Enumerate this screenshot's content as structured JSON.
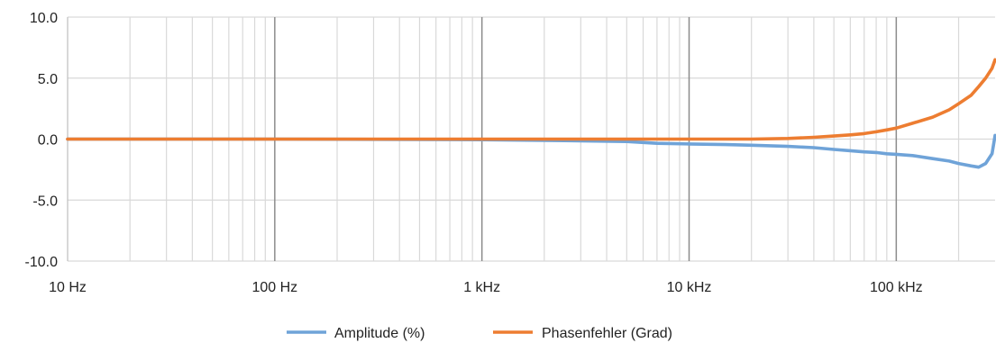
{
  "chart_data": {
    "type": "line",
    "x_scale": "log",
    "xlim": [
      10,
      300000
    ],
    "ylim": [
      -10,
      10
    ],
    "y_ticks": [
      10,
      5,
      0,
      -5,
      -10
    ],
    "y_tick_labels": [
      "10.0",
      "5.0",
      "0.0",
      "-5.0",
      "-10.0"
    ],
    "x_ticks": [
      10,
      100,
      1000,
      10000,
      100000
    ],
    "x_tick_labels": [
      "10 Hz",
      "100 Hz",
      "1 kHz",
      "10 kHz",
      "100 kHz"
    ],
    "grid": true,
    "legend_position": "bottom",
    "series": [
      {
        "name": "Amplitude (%)",
        "color": "#6fa3d8",
        "x": [
          10,
          100,
          1000,
          2000,
          5000,
          7000,
          10000,
          15000,
          20000,
          30000,
          40000,
          50000,
          60000,
          70000,
          80000,
          90000,
          100000,
          120000,
          150000,
          180000,
          200000,
          230000,
          250000,
          270000,
          290000,
          300000
        ],
        "y": [
          0.0,
          0.0,
          -0.05,
          -0.1,
          -0.2,
          -0.35,
          -0.4,
          -0.45,
          -0.5,
          -0.6,
          -0.7,
          -0.85,
          -0.95,
          -1.05,
          -1.1,
          -1.2,
          -1.25,
          -1.35,
          -1.6,
          -1.8,
          -2.0,
          -2.2,
          -2.3,
          -2.0,
          -1.2,
          0.3
        ]
      },
      {
        "name": "Phasenfehler (Grad)",
        "color": "#ed7d31",
        "x": [
          10,
          100,
          1000,
          5000,
          10000,
          20000,
          30000,
          40000,
          50000,
          60000,
          70000,
          80000,
          90000,
          100000,
          120000,
          150000,
          180000,
          200000,
          230000,
          250000,
          270000,
          290000,
          300000
        ],
        "y": [
          0.0,
          0.0,
          0.0,
          0.0,
          0.0,
          0.0,
          0.05,
          0.15,
          0.25,
          0.35,
          0.45,
          0.6,
          0.75,
          0.9,
          1.3,
          1.8,
          2.4,
          2.9,
          3.6,
          4.3,
          5.0,
          5.8,
          6.5
        ]
      }
    ]
  }
}
